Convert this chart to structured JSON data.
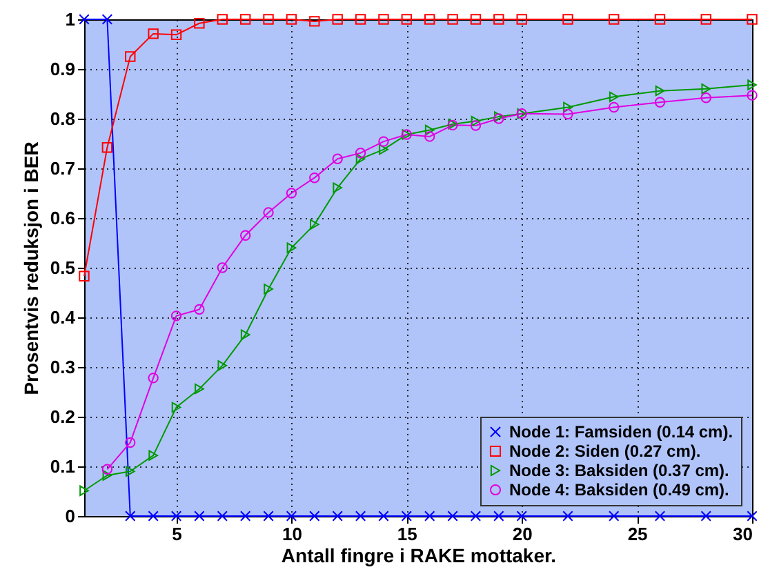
{
  "chart_data": {
    "type": "line",
    "xlabel": "Antall fingre i RAKE mottaker.",
    "ylabel": "Prosentvis reduksjon i BER",
    "x": [
      1,
      2,
      3,
      4,
      5,
      6,
      7,
      8,
      9,
      10,
      11,
      12,
      13,
      14,
      15,
      16,
      17,
      18,
      19,
      20,
      22,
      24,
      26,
      28,
      30
    ],
    "xlim": [
      1,
      30
    ],
    "xticks": [
      5,
      10,
      15,
      20,
      25,
      30
    ],
    "ylim": [
      0,
      1
    ],
    "yticks": [
      0,
      0.1,
      0.2,
      0.3,
      0.4,
      0.5,
      0.6,
      0.7,
      0.8,
      0.9,
      1
    ],
    "grid": true,
    "legend": "bottom right",
    "line_style": "solid",
    "series": [
      {
        "name": "Node 1: Famsiden (0.14 cm).",
        "color": "#0000ff",
        "marker": "cross",
        "values": [
          1,
          1,
          0,
          0,
          0,
          0,
          0,
          0,
          0,
          0,
          0,
          0,
          0,
          0,
          0,
          0,
          0,
          0,
          0,
          0,
          0,
          0,
          0,
          0,
          0
        ]
      },
      {
        "name": "Node 2: Siden (0.27 cm).",
        "color": "#ff0000",
        "marker": "square",
        "values": [
          0.483,
          0.742,
          0.925,
          0.971,
          0.969,
          0.992,
          1,
          1,
          1,
          1,
          0.996,
          1,
          1,
          1,
          1,
          1,
          1,
          1,
          1,
          1,
          1,
          1,
          1,
          1,
          1
        ]
      },
      {
        "name": "Node 3: Baksiden (0.37 cm).",
        "color": "#009900",
        "marker": "triangle",
        "values": [
          0.051,
          0.082,
          0.09,
          0.122,
          0.219,
          0.256,
          0.303,
          0.365,
          0.457,
          0.54,
          0.587,
          0.661,
          0.719,
          0.738,
          0.768,
          0.777,
          0.789,
          0.795,
          0.804,
          0.81,
          0.823,
          0.844,
          0.856,
          0.86,
          0.868
        ]
      },
      {
        "name": "Node 4: Baksiden (0.49 cm).",
        "color": "#e000e0",
        "marker": "circle",
        "values": [
          null,
          0.094,
          0.148,
          0.278,
          0.403,
          0.416,
          0.5,
          0.565,
          0.611,
          0.65,
          0.681,
          0.719,
          0.731,
          0.754,
          0.768,
          0.764,
          0.787,
          0.786,
          0.8,
          0.81,
          0.809,
          0.823,
          0.833,
          0.842,
          0.847
        ]
      }
    ]
  }
}
